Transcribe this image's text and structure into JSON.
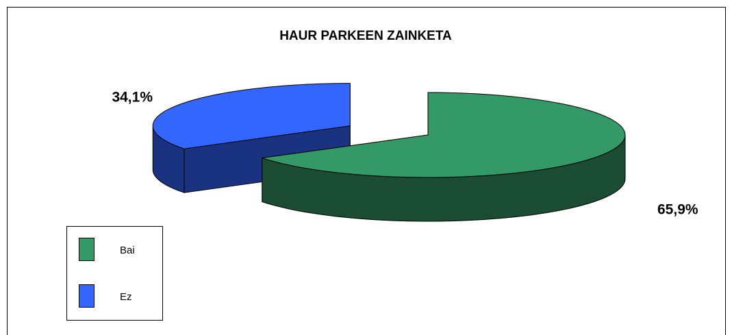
{
  "chart_data": {
    "type": "pie3d",
    "title": "HAUR PARKEEN ZAINKETA",
    "categories": [
      "Bai",
      "Ez"
    ],
    "values": [
      65.9,
      34.1
    ],
    "value_labels": [
      "65,9%",
      "34,1%"
    ],
    "colors": [
      "#339966",
      "#3366ff"
    ],
    "legend": "bottom-left"
  }
}
